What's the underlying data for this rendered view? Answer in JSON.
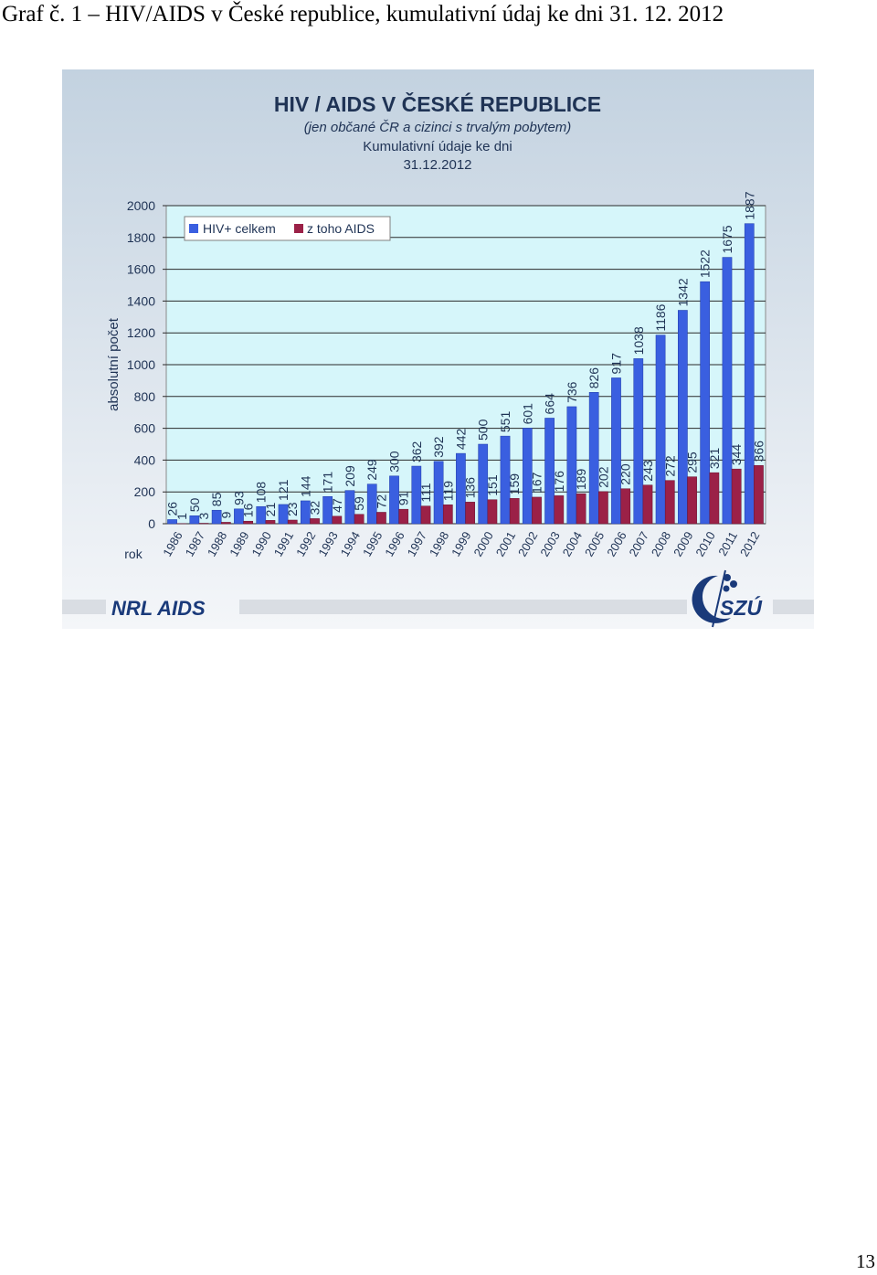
{
  "document": {
    "caption": "Graf č. 1 – HIV/AIDS v České republice, kumulativní údaj ke dni 31. 12. 2012",
    "page_number": "13"
  },
  "logos": {
    "left": "NRL AIDS",
    "right": "SZÚ"
  },
  "colors": {
    "hiv_bar": "#3a5fe0",
    "aids_bar": "#9b2147",
    "plot_background": "#d6f6fa",
    "panel_top": "#c3d2e0",
    "panel_bottom": "#f4f6f9",
    "title_text": "#1f3355",
    "logo_text": "#1a3a7a"
  },
  "chart_data": {
    "type": "bar",
    "title": "HIV / AIDS V ČESKÉ REPUBLICE",
    "subtitle": "(jen občané ČR a cizinci s trvalým pobytem)",
    "subtitle2": "Kumulativní údaje ke dni",
    "subtitle3": "31.12.2012",
    "ylabel": "absolutní počet",
    "xlabel": "rok",
    "ylim": [
      0,
      2000
    ],
    "yticks": [
      "0",
      "200",
      "400",
      "600",
      "800",
      "1000",
      "1200",
      "1400",
      "1600",
      "1800",
      "2000"
    ],
    "grid": true,
    "legend_position": "top-left",
    "categories": [
      "1986",
      "1987",
      "1988",
      "1989",
      "1990",
      "1991",
      "1992",
      "1993",
      "1994",
      "1995",
      "1996",
      "1997",
      "1998",
      "1999",
      "2000",
      "2001",
      "2002",
      "2003",
      "2004",
      "2005",
      "2006",
      "2007",
      "2008",
      "2009",
      "2010",
      "2011",
      "2012"
    ],
    "series": [
      {
        "name": "HIV+ celkem",
        "values": [
          26,
          50,
          85,
          93,
          108,
          121,
          144,
          171,
          209,
          249,
          300,
          362,
          392,
          442,
          500,
          551,
          601,
          664,
          736,
          826,
          917,
          1038,
          1186,
          1342,
          1522,
          1675,
          1887
        ]
      },
      {
        "name": "z toho AIDS",
        "values": [
          1,
          3,
          9,
          16,
          21,
          23,
          32,
          47,
          59,
          72,
          91,
          111,
          119,
          136,
          151,
          159,
          167,
          176,
          189,
          202,
          220,
          243,
          272,
          295,
          321,
          344,
          366
        ]
      }
    ]
  }
}
